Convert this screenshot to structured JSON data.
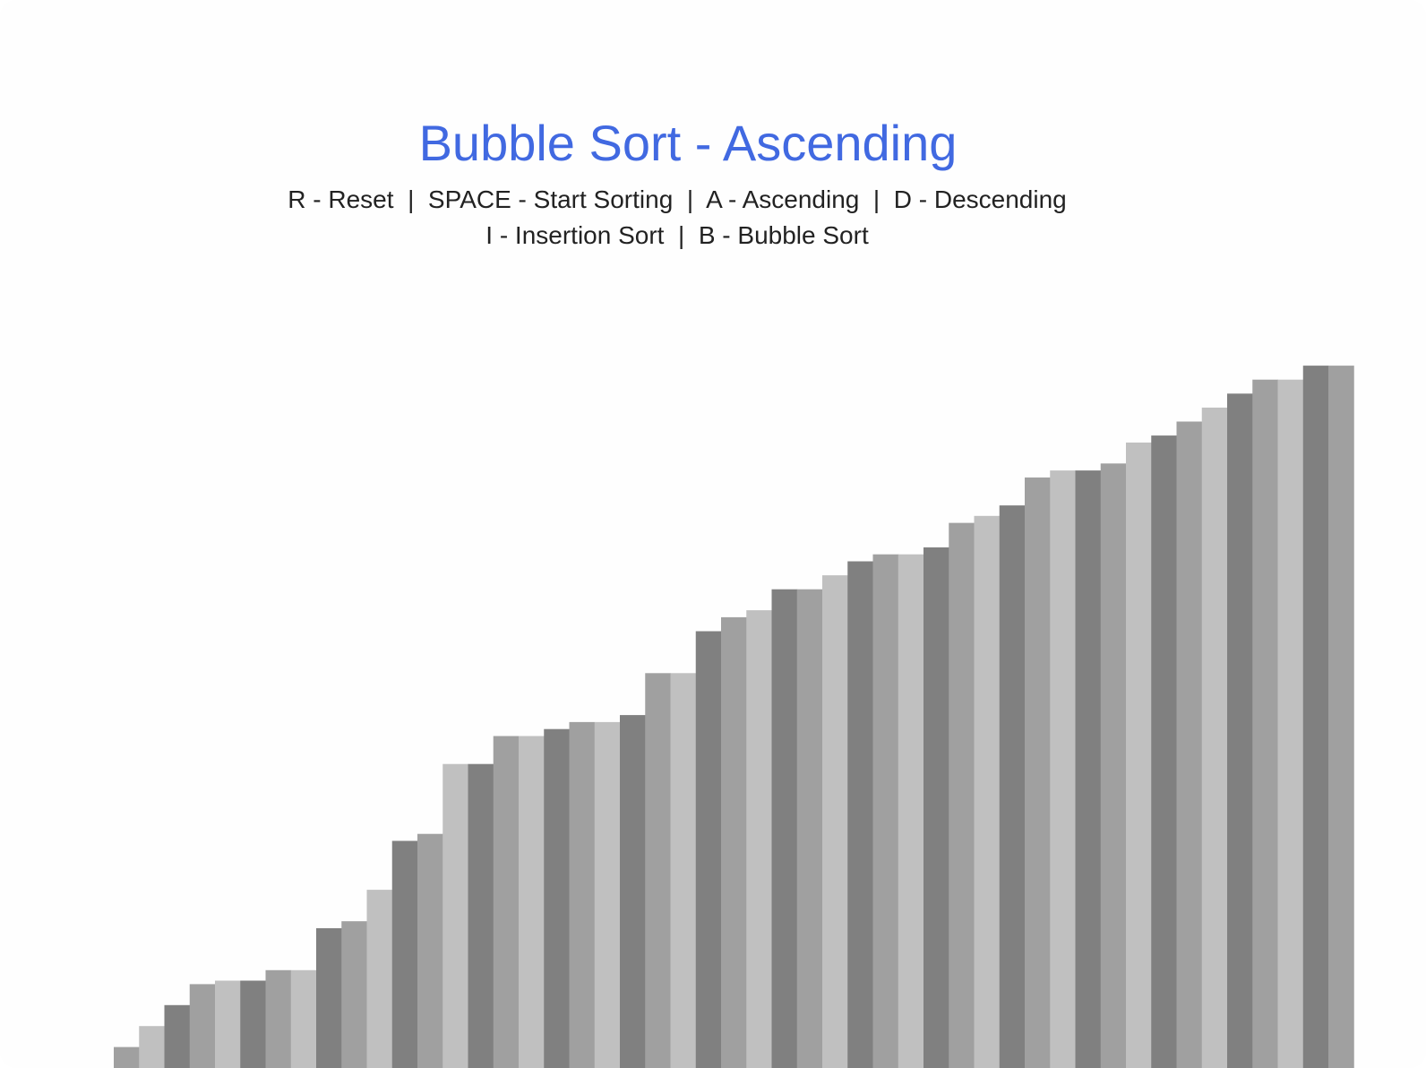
{
  "title": "Bubble Sort - Ascending",
  "help": {
    "line1": "R - Reset  |  SPACE - Start Sorting  |  A - Ascending  |  D - Descending",
    "line2": "I - Insertion Sort  |  B - Bubble Sort"
  },
  "colors": {
    "title": "#4169e1",
    "bar_dark": "#808080",
    "bar_mid": "#a0a0a0",
    "bar_light": "#c0c0c0",
    "background": "#fefefe"
  },
  "bars": {
    "order": "ascending",
    "values": [
      3,
      6,
      9,
      12,
      12.5,
      12.5,
      14,
      14,
      20,
      21,
      25.5,
      32.5,
      33.5,
      43.5,
      43.5,
      47.5,
      47.5,
      48.5,
      49.5,
      49.5,
      50.5,
      56.5,
      56.5,
      62.5,
      64.5,
      65.5,
      68.5,
      68.5,
      70.5,
      72.5,
      73.5,
      73.5,
      74.5,
      78,
      79,
      80.5,
      84.5,
      85.5,
      85.5,
      86.5,
      89.5,
      90.5,
      92.5,
      94.5,
      96.5,
      98.5,
      98.5,
      100.5,
      100.5
    ],
    "shades": [
      "mid",
      "light",
      "dark",
      "mid",
      "light",
      "dark",
      "mid",
      "light",
      "dark",
      "mid",
      "light",
      "dark",
      "mid",
      "light",
      "dark",
      "mid",
      "light",
      "dark",
      "mid",
      "light",
      "dark",
      "mid",
      "light",
      "dark",
      "mid",
      "light",
      "dark",
      "mid",
      "light",
      "dark",
      "mid",
      "light",
      "dark",
      "mid",
      "light",
      "dark",
      "mid",
      "light",
      "dark",
      "mid",
      "light",
      "dark",
      "mid",
      "light",
      "dark",
      "mid",
      "light",
      "dark",
      "mid"
    ]
  }
}
